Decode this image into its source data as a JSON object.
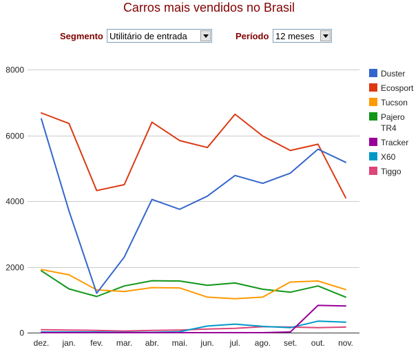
{
  "page": {
    "title": "Carros mais vendidos no Brasil"
  },
  "controls": {
    "segment_label": "Segmento",
    "segment_value": "Utilitário de entrada",
    "period_label": "Período",
    "period_value": "12 meses"
  },
  "chart_data": {
    "type": "line",
    "title": "Carros mais vendidos no Brasil",
    "xlabel": "",
    "ylabel": "",
    "ylim": [
      0,
      8000
    ],
    "yticks": [
      0,
      2000,
      4000,
      6000,
      8000
    ],
    "grid": true,
    "legend_position": "right",
    "categories": [
      "dez.",
      "jan.",
      "fev.",
      "mar.",
      "abr.",
      "mai.",
      "jun.",
      "jul.",
      "ago.",
      "set.",
      "out.",
      "nov."
    ],
    "series": [
      {
        "name": "Duster",
        "color": "#3366cc",
        "values": [
          6500,
          3700,
          1200,
          2300,
          4050,
          3750,
          4150,
          4780,
          4540,
          4850,
          5580,
          5180
        ]
      },
      {
        "name": "Ecosport",
        "color": "#dc3912",
        "values": [
          6680,
          6360,
          4320,
          4500,
          6400,
          5840,
          5630,
          6640,
          5980,
          5540,
          5730,
          4100
        ]
      },
      {
        "name": "Tucson",
        "color": "#ff9900",
        "values": [
          1920,
          1760,
          1300,
          1250,
          1370,
          1360,
          1080,
          1030,
          1080,
          1540,
          1570,
          1310
        ]
      },
      {
        "name": "Pajero TR4",
        "color": "#109618",
        "values": [
          1880,
          1330,
          1100,
          1420,
          1580,
          1570,
          1440,
          1510,
          1320,
          1230,
          1420,
          1080
        ]
      },
      {
        "name": "Tracker",
        "color": "#990099",
        "values": [
          0,
          0,
          0,
          0,
          0,
          0,
          0,
          0,
          0,
          20,
          830,
          810
        ]
      },
      {
        "name": "X60",
        "color": "#0099c6",
        "values": [
          20,
          20,
          20,
          10,
          10,
          30,
          200,
          260,
          190,
          150,
          350,
          320
        ]
      },
      {
        "name": "Tiggo",
        "color": "#dd4477",
        "values": [
          90,
          80,
          70,
          50,
          70,
          80,
          110,
          130,
          180,
          170,
          150,
          170
        ]
      }
    ]
  }
}
